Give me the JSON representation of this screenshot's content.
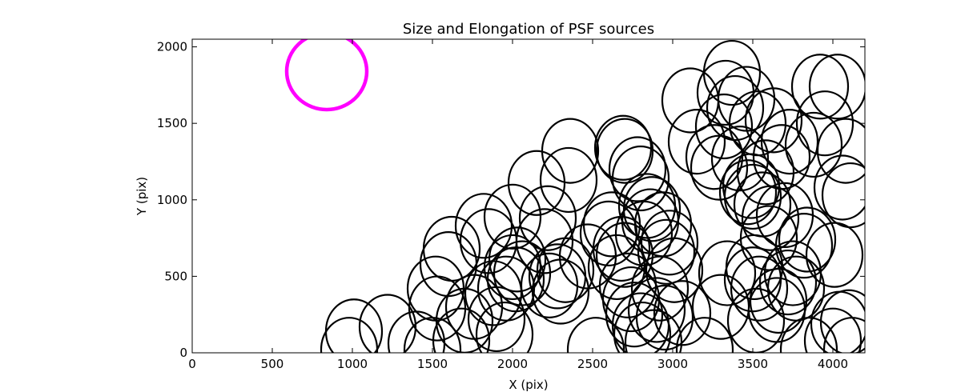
{
  "chart_data": {
    "type": "scatter",
    "title": "Size and Elongation of PSF sources",
    "xlabel": "X (pix)",
    "ylabel": "Y (pix)",
    "xlim": [
      0,
      4200
    ],
    "ylim": [
      0,
      2050
    ],
    "xticks": [
      0,
      500,
      1000,
      1500,
      2000,
      2500,
      3000,
      3500,
      4000
    ],
    "yticks": [
      0,
      500,
      1000,
      1500,
      2000
    ],
    "grid": false,
    "reference_marker": {
      "x": 840,
      "y": 1840,
      "rx": 250,
      "ry": 250,
      "color": "#ff00ff"
    },
    "circle_color": "#000000",
    "sources": [
      {
        "x": 1010,
        "y": 140
      },
      {
        "x": 1220,
        "y": 170
      },
      {
        "x": 980,
        "y": 20
      },
      {
        "x": 1400,
        "y": 60
      },
      {
        "x": 1500,
        "y": 20
      },
      {
        "x": 1520,
        "y": 420
      },
      {
        "x": 1530,
        "y": 290
      },
      {
        "x": 1600,
        "y": 580
      },
      {
        "x": 1620,
        "y": 680
      },
      {
        "x": 1700,
        "y": 210
      },
      {
        "x": 1680,
        "y": 80
      },
      {
        "x": 1760,
        "y": 300
      },
      {
        "x": 1820,
        "y": 830
      },
      {
        "x": 1850,
        "y": 730
      },
      {
        "x": 1880,
        "y": 390
      },
      {
        "x": 1900,
        "y": 220
      },
      {
        "x": 1950,
        "y": 120
      },
      {
        "x": 1960,
        "y": 420
      },
      {
        "x": 2000,
        "y": 890
      },
      {
        "x": 2000,
        "y": 560
      },
      {
        "x": 2020,
        "y": 480
      },
      {
        "x": 2030,
        "y": 610
      },
      {
        "x": 2060,
        "y": 520
      },
      {
        "x": 2150,
        "y": 1110
      },
      {
        "x": 2200,
        "y": 730
      },
      {
        "x": 2220,
        "y": 880
      },
      {
        "x": 2230,
        "y": 440
      },
      {
        "x": 2280,
        "y": 500
      },
      {
        "x": 2300,
        "y": 400
      },
      {
        "x": 2330,
        "y": 540
      },
      {
        "x": 2350,
        "y": 1130
      },
      {
        "x": 2360,
        "y": 1320
      },
      {
        "x": 2470,
        "y": 630
      },
      {
        "x": 2520,
        "y": 20
      },
      {
        "x": 2600,
        "y": 780
      },
      {
        "x": 2620,
        "y": 840
      },
      {
        "x": 2650,
        "y": 560
      },
      {
        "x": 2680,
        "y": 680
      },
      {
        "x": 2690,
        "y": 1340
      },
      {
        "x": 2700,
        "y": 1320
      },
      {
        "x": 2700,
        "y": 640
      },
      {
        "x": 2720,
        "y": 440
      },
      {
        "x": 2740,
        "y": 350
      },
      {
        "x": 2760,
        "y": 250
      },
      {
        "x": 2780,
        "y": 1200
      },
      {
        "x": 2800,
        "y": 1140
      },
      {
        "x": 2800,
        "y": 180
      },
      {
        "x": 2810,
        "y": 120
      },
      {
        "x": 2820,
        "y": 780
      },
      {
        "x": 2840,
        "y": 960
      },
      {
        "x": 2860,
        "y": 860
      },
      {
        "x": 2870,
        "y": 940
      },
      {
        "x": 2880,
        "y": 70
      },
      {
        "x": 2900,
        "y": 280
      },
      {
        "x": 2920,
        "y": 420
      },
      {
        "x": 2940,
        "y": 840
      },
      {
        "x": 2950,
        "y": 230
      },
      {
        "x": 2960,
        "y": 660
      },
      {
        "x": 2980,
        "y": 720
      },
      {
        "x": 3010,
        "y": 540
      },
      {
        "x": 3060,
        "y": 260
      },
      {
        "x": 3110,
        "y": 1650
      },
      {
        "x": 3150,
        "y": 1380
      },
      {
        "x": 3200,
        "y": 20
      },
      {
        "x": 3260,
        "y": 1280
      },
      {
        "x": 3290,
        "y": 1210
      },
      {
        "x": 3300,
        "y": 300
      },
      {
        "x": 3320,
        "y": 1480
      },
      {
        "x": 3330,
        "y": 1700
      },
      {
        "x": 3340,
        "y": 520
      },
      {
        "x": 3370,
        "y": 1830
      },
      {
        "x": 3390,
        "y": 1600
      },
      {
        "x": 3420,
        "y": 1270
      },
      {
        "x": 3460,
        "y": 1660
      },
      {
        "x": 3470,
        "y": 1050
      },
      {
        "x": 3490,
        "y": 1090
      },
      {
        "x": 3500,
        "y": 1020
      },
      {
        "x": 3500,
        "y": 480
      },
      {
        "x": 3510,
        "y": 560
      },
      {
        "x": 3520,
        "y": 210
      },
      {
        "x": 3530,
        "y": 1500
      },
      {
        "x": 3540,
        "y": 420
      },
      {
        "x": 3560,
        "y": 970
      },
      {
        "x": 3580,
        "y": 1180
      },
      {
        "x": 3600,
        "y": 750
      },
      {
        "x": 3610,
        "y": 880
      },
      {
        "x": 3630,
        "y": 1520
      },
      {
        "x": 3650,
        "y": 280
      },
      {
        "x": 3660,
        "y": 340
      },
      {
        "x": 3680,
        "y": 1280
      },
      {
        "x": 3700,
        "y": 900
      },
      {
        "x": 3720,
        "y": 460
      },
      {
        "x": 3730,
        "y": 1380
      },
      {
        "x": 3750,
        "y": 520
      },
      {
        "x": 3770,
        "y": 420
      },
      {
        "x": 3820,
        "y": 700
      },
      {
        "x": 3840,
        "y": 740
      },
      {
        "x": 3850,
        "y": 20
      },
      {
        "x": 3880,
        "y": 1360
      },
      {
        "x": 3920,
        "y": 1740
      },
      {
        "x": 3950,
        "y": 1500
      },
      {
        "x": 4000,
        "y": 80
      },
      {
        "x": 4010,
        "y": 640
      },
      {
        "x": 4030,
        "y": 1740
      },
      {
        "x": 4040,
        "y": 190
      },
      {
        "x": 4060,
        "y": 1080
      },
      {
        "x": 4080,
        "y": 1320
      },
      {
        "x": 4100,
        "y": 200
      },
      {
        "x": 4110,
        "y": 1030
      },
      {
        "x": 4120,
        "y": 20
      }
    ]
  }
}
